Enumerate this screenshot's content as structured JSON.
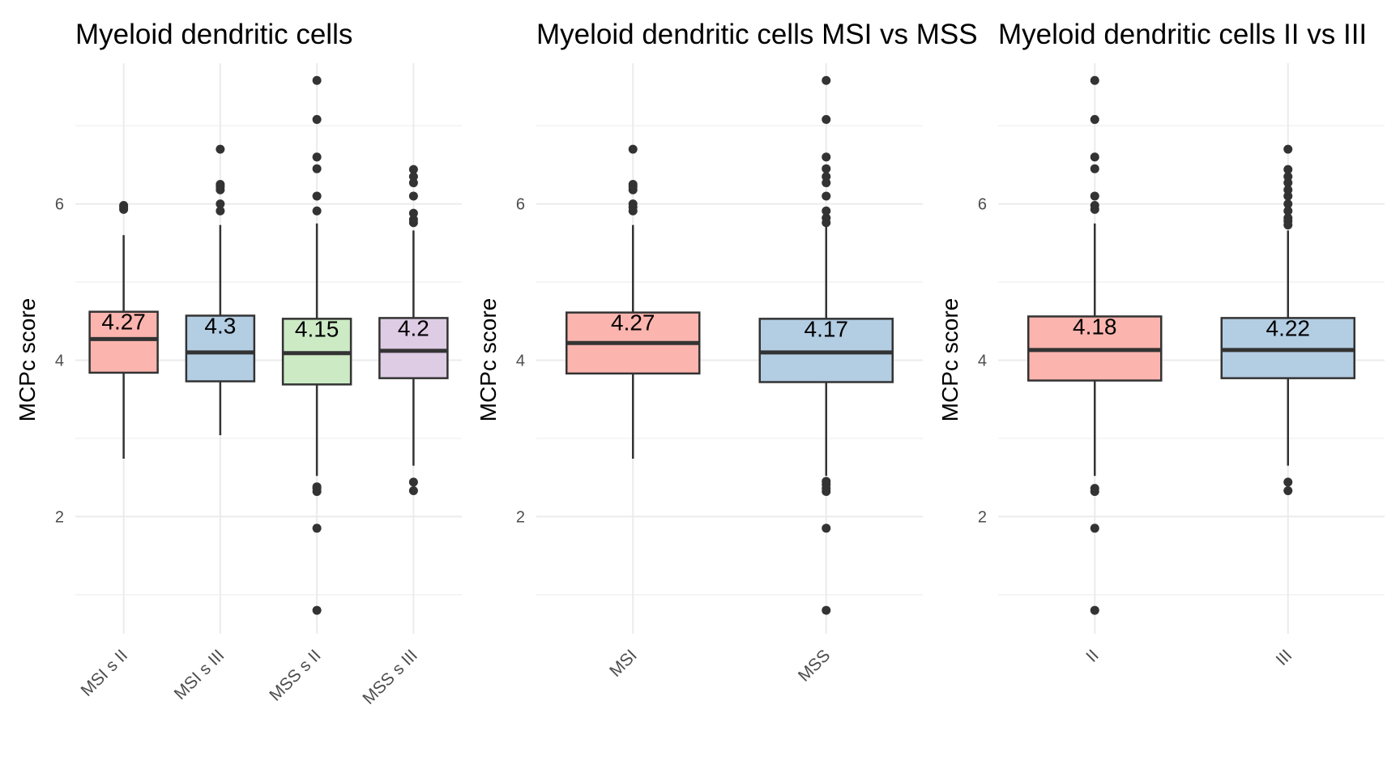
{
  "chart_data": [
    {
      "type": "box",
      "title": "Myeloid dendritic cells",
      "ylabel": "MCPc score",
      "xlabel": "",
      "ylim": [
        0.5,
        7.8
      ],
      "yticks": [
        2,
        4,
        6
      ],
      "grid": true,
      "categories": [
        "MSI s II",
        "MSI s III",
        "MSS s II",
        "MSS s III"
      ],
      "boxes": [
        {
          "category": "MSI s II",
          "color": "#FBB4AE",
          "q1": 3.84,
          "median": 4.27,
          "q3": 4.62,
          "whisker_low": 2.74,
          "whisker_high": 5.6,
          "label": "4.27",
          "outliers": [
            5.93,
            5.96,
            5.98
          ]
        },
        {
          "category": "MSI s III",
          "color": "#B3CDE3",
          "q1": 3.73,
          "median": 4.1,
          "q3": 4.57,
          "whisker_low": 3.04,
          "whisker_high": 5.73,
          "label": "4.3",
          "outliers": [
            5.91,
            6.0,
            6.18,
            6.22,
            6.25,
            6.7
          ]
        },
        {
          "category": "MSS s II",
          "color": "#CCEBC5",
          "q1": 3.69,
          "median": 4.09,
          "q3": 4.53,
          "whisker_low": 2.52,
          "whisker_high": 5.75,
          "label": "4.15",
          "outliers": [
            0.8,
            1.85,
            2.32,
            2.36,
            2.38,
            5.91,
            6.1,
            6.45,
            6.6,
            7.08,
            7.58
          ]
        },
        {
          "category": "MSS s III",
          "color": "#DECBE4",
          "q1": 3.77,
          "median": 4.12,
          "q3": 4.54,
          "whisker_low": 2.65,
          "whisker_high": 5.66,
          "label": "4.2",
          "outliers": [
            2.33,
            2.44,
            5.76,
            5.8,
            5.88,
            6.1,
            6.27,
            6.35,
            6.44
          ]
        }
      ]
    },
    {
      "type": "box",
      "title": "Myeloid dendritic cells MSI vs MSS",
      "ylabel": "MCPc score",
      "xlabel": "",
      "ylim": [
        0.5,
        7.8
      ],
      "yticks": [
        2,
        4,
        6
      ],
      "grid": true,
      "categories": [
        "MSI",
        "MSS"
      ],
      "boxes": [
        {
          "category": "MSI",
          "color": "#FBB4AE",
          "q1": 3.83,
          "median": 4.22,
          "q3": 4.61,
          "whisker_low": 2.74,
          "whisker_high": 5.73,
          "label": "4.27",
          "outliers": [
            5.91,
            5.96,
            6.0,
            6.18,
            6.22,
            6.25,
            6.7
          ]
        },
        {
          "category": "MSS",
          "color": "#B3CDE3",
          "q1": 3.72,
          "median": 4.1,
          "q3": 4.53,
          "whisker_low": 2.52,
          "whisker_high": 5.75,
          "label": "4.17",
          "outliers": [
            0.8,
            1.85,
            2.32,
            2.36,
            2.41,
            2.45,
            5.76,
            5.82,
            5.91,
            6.1,
            6.27,
            6.35,
            6.45,
            6.6,
            7.08,
            7.58
          ]
        }
      ]
    },
    {
      "type": "box",
      "title": "Myeloid dendritic cells II vs III",
      "ylabel": "MCPc score",
      "xlabel": "",
      "ylim": [
        0.5,
        7.8
      ],
      "yticks": [
        2,
        4,
        6
      ],
      "grid": true,
      "categories": [
        "II",
        "III"
      ],
      "boxes": [
        {
          "category": "II",
          "color": "#FBB4AE",
          "q1": 3.74,
          "median": 4.13,
          "q3": 4.56,
          "whisker_low": 2.52,
          "whisker_high": 5.75,
          "label": "4.18",
          "outliers": [
            0.8,
            1.85,
            2.32,
            2.36,
            5.93,
            5.98,
            6.1,
            6.45,
            6.6,
            7.08,
            7.58
          ]
        },
        {
          "category": "III",
          "color": "#B3CDE3",
          "q1": 3.77,
          "median": 4.13,
          "q3": 4.54,
          "whisker_low": 2.65,
          "whisker_high": 5.66,
          "label": "4.22",
          "outliers": [
            2.33,
            2.44,
            5.73,
            5.78,
            5.82,
            5.91,
            6.0,
            6.1,
            6.18,
            6.27,
            6.35,
            6.44,
            6.7
          ]
        }
      ]
    }
  ]
}
